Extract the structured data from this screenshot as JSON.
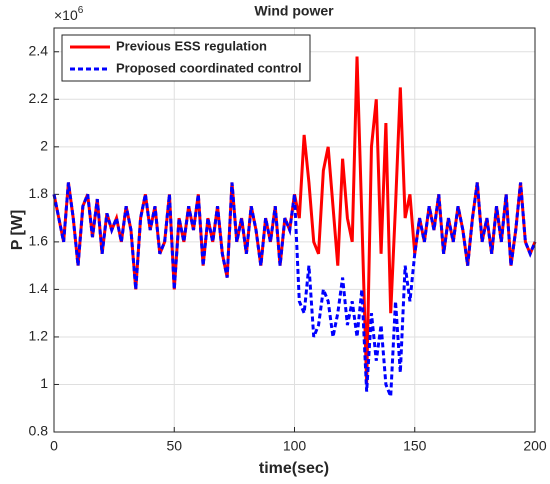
{
  "chart_data": {
    "type": "line",
    "title": "Wind power",
    "x_label": "time(sec)",
    "y_label": "P [W]",
    "y_scale_label": "×10",
    "y_scale_exponent": "6",
    "x": [
      0,
      2,
      4,
      6,
      8,
      10,
      12,
      14,
      16,
      18,
      20,
      22,
      24,
      26,
      28,
      30,
      32,
      34,
      36,
      38,
      40,
      42,
      44,
      46,
      48,
      50,
      52,
      54,
      56,
      58,
      60,
      62,
      64,
      66,
      68,
      70,
      72,
      74,
      76,
      78,
      80,
      82,
      84,
      86,
      88,
      90,
      92,
      94,
      96,
      98,
      100,
      102,
      104,
      106,
      108,
      110,
      112,
      114,
      116,
      118,
      120,
      122,
      124,
      126,
      128,
      130,
      132,
      134,
      136,
      138,
      140,
      142,
      144,
      146,
      148,
      150,
      152,
      154,
      156,
      158,
      160,
      162,
      164,
      166,
      168,
      170,
      172,
      174,
      176,
      178,
      180,
      182,
      184,
      186,
      188,
      190,
      192,
      194,
      196,
      198,
      200
    ],
    "series": [
      {
        "name": "Previous ESS regulation",
        "color": "#ff0000",
        "dash": false,
        "values": [
          1.8,
          1.7,
          1.6,
          1.85,
          1.7,
          1.5,
          1.75,
          1.8,
          1.62,
          1.78,
          1.55,
          1.72,
          1.65,
          1.7,
          1.6,
          1.75,
          1.65,
          1.4,
          1.7,
          1.8,
          1.65,
          1.75,
          1.55,
          1.6,
          1.8,
          1.4,
          1.7,
          1.6,
          1.75,
          1.65,
          1.8,
          1.5,
          1.7,
          1.6,
          1.75,
          1.55,
          1.45,
          1.85,
          1.6,
          1.7,
          1.55,
          1.75,
          1.65,
          1.5,
          1.7,
          1.6,
          1.75,
          1.5,
          1.7,
          1.65,
          1.8,
          1.7,
          2.05,
          1.85,
          1.6,
          1.55,
          1.9,
          2.0,
          1.75,
          1.5,
          1.95,
          1.7,
          1.6,
          2.38,
          1.7,
          1.0,
          2.0,
          2.2,
          1.55,
          2.1,
          1.3,
          1.75,
          2.25,
          1.7,
          1.8,
          1.55,
          1.7,
          1.6,
          1.75,
          1.65,
          1.8,
          1.55,
          1.7,
          1.6,
          1.75,
          1.65,
          1.5,
          1.7,
          1.85,
          1.6,
          1.7,
          1.55,
          1.75,
          1.6,
          1.8,
          1.5,
          1.65,
          1.85,
          1.6,
          1.55,
          1.6
        ]
      },
      {
        "name": "Proposed coordinated control",
        "color": "#0000ff",
        "dash": true,
        "values": [
          1.8,
          1.7,
          1.6,
          1.85,
          1.7,
          1.5,
          1.75,
          1.8,
          1.62,
          1.78,
          1.55,
          1.72,
          1.65,
          1.7,
          1.6,
          1.75,
          1.65,
          1.4,
          1.7,
          1.8,
          1.65,
          1.75,
          1.55,
          1.6,
          1.8,
          1.4,
          1.7,
          1.6,
          1.75,
          1.65,
          1.8,
          1.5,
          1.7,
          1.6,
          1.75,
          1.55,
          1.45,
          1.85,
          1.6,
          1.7,
          1.55,
          1.75,
          1.65,
          1.5,
          1.7,
          1.6,
          1.75,
          1.5,
          1.7,
          1.65,
          1.8,
          1.35,
          1.3,
          1.5,
          1.2,
          1.25,
          1.4,
          1.35,
          1.2,
          1.3,
          1.45,
          1.25,
          1.35,
          1.2,
          1.4,
          0.97,
          1.3,
          1.1,
          1.25,
          1.0,
          0.95,
          1.35,
          1.05,
          1.5,
          1.35,
          1.55,
          1.7,
          1.6,
          1.75,
          1.65,
          1.8,
          1.55,
          1.7,
          1.6,
          1.75,
          1.65,
          1.5,
          1.7,
          1.85,
          1.6,
          1.7,
          1.55,
          1.75,
          1.6,
          1.8,
          1.5,
          1.65,
          1.85,
          1.6,
          1.55,
          1.6
        ]
      }
    ],
    "xlim": [
      0,
      200
    ],
    "xticks": [
      0,
      50,
      100,
      150,
      200
    ],
    "ylim": [
      0.8,
      2.5
    ],
    "yticks": [
      0.8,
      1,
      1.2,
      1.4,
      1.6,
      1.8,
      2,
      2.2,
      2.4
    ],
    "grid": true,
    "legend": "upper left"
  }
}
